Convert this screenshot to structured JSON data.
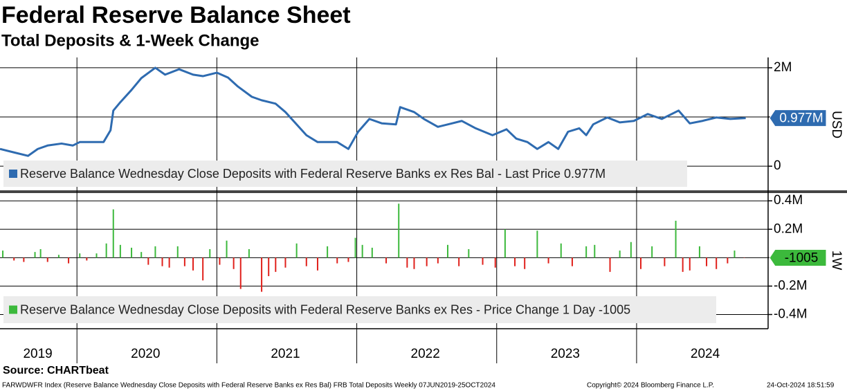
{
  "title": "Federal Reserve Balance Sheet",
  "subtitle": "Total Deposits & 1-Week Change",
  "source": "Source: CHARTbeat",
  "footer_left": "FARWDWFR Index (Reserve Balance Wednesday Close Deposits with Federal Reserve Banks ex Res Bal) FRB Total Deposits  Weekly 07JUN2019-25OCT2024",
  "footer_mid": "Copyright© 2024 Bloomberg Finance L.P.",
  "footer_right": "24-Oct-2024 18:51:59",
  "x_axis": {
    "xlim": [
      2019.45,
      2024.94
    ],
    "xticks": [
      {
        "value": 2019.72,
        "label": "2019"
      },
      {
        "value": 2020.49,
        "label": "2020"
      },
      {
        "value": 2021.49,
        "label": "2021"
      },
      {
        "value": 2022.49,
        "label": "2022"
      },
      {
        "value": 2023.49,
        "label": "2023"
      },
      {
        "value": 2024.49,
        "label": "2024"
      }
    ],
    "gridlines": [
      2020,
      2021,
      2022,
      2023,
      2024
    ]
  },
  "chart_data": [
    {
      "type": "line",
      "x": [
        2019.45,
        2019.55,
        2019.65,
        2019.72,
        2019.79,
        2019.89,
        2019.97,
        2020.02,
        2020.09,
        2020.19,
        2020.24,
        2020.26,
        2020.31,
        2020.39,
        2020.46,
        2020.56,
        2020.63,
        2020.73,
        2020.83,
        2020.9,
        2021.0,
        2021.08,
        2021.15,
        2021.25,
        2021.32,
        2021.42,
        2021.49,
        2021.57,
        2021.64,
        2021.72,
        2021.79,
        2021.86,
        2021.94,
        2022.01,
        2022.09,
        2022.18,
        2022.28,
        2022.31,
        2022.41,
        2022.48,
        2022.58,
        2022.68,
        2022.75,
        2022.85,
        2022.97,
        2023.07,
        2023.14,
        2023.22,
        2023.29,
        2023.37,
        2023.44,
        2023.51,
        2023.59,
        2023.64,
        2023.69,
        2023.79,
        2023.88,
        2023.98,
        2024.08,
        2024.18,
        2024.3,
        2024.38,
        2024.47,
        2024.57,
        2024.67,
        2024.78
      ],
      "series": [
        {
          "name": "Reserve Balance Wednesday Close Deposits with Federal Reserve Banks ex Res Bal - Last Price 0.977M",
          "color": "#2e6bb0",
          "values": [
            350000,
            280000,
            210000,
            350000,
            420000,
            460000,
            420000,
            490000,
            490000,
            490000,
            730000,
            1130000,
            1300000,
            1550000,
            1790000,
            2000000,
            1860000,
            1970000,
            1860000,
            1830000,
            1900000,
            1800000,
            1620000,
            1410000,
            1340000,
            1270000,
            1100000,
            850000,
            630000,
            490000,
            490000,
            490000,
            350000,
            700000,
            960000,
            870000,
            850000,
            1200000,
            1100000,
            960000,
            800000,
            870000,
            920000,
            770000,
            630000,
            750000,
            560000,
            490000,
            350000,
            490000,
            350000,
            700000,
            770000,
            630000,
            850000,
            990000,
            890000,
            920000,
            1060000,
            960000,
            1130000,
            870000,
            920000,
            990000,
            960000,
            977000
          ]
        }
      ],
      "ylim": [
        -490000,
        2210000
      ],
      "yticks": [
        {
          "value": 2000000,
          "label": "2M"
        },
        {
          "value": 1000000,
          "label": null
        },
        0
      ],
      "last_label": "0.977M",
      "right_label": "USD"
    },
    {
      "type": "bar",
      "x": [
        2019.47,
        2019.55,
        2019.62,
        2019.7,
        2019.74,
        2019.79,
        2019.87,
        2019.94,
        2020.02,
        2020.07,
        2020.14,
        2020.21,
        2020.26,
        2020.31,
        2020.39,
        2020.46,
        2020.51,
        2020.56,
        2020.61,
        2020.66,
        2020.72,
        2020.77,
        2020.83,
        2020.9,
        2020.95,
        2021.02,
        2021.07,
        2021.12,
        2021.17,
        2021.23,
        2021.32,
        2021.37,
        2021.42,
        2021.49,
        2021.57,
        2021.64,
        2021.72,
        2021.79,
        2021.86,
        2021.94,
        2021.99,
        2022.04,
        2022.11,
        2022.21,
        2022.3,
        2022.36,
        2022.41,
        2022.5,
        2022.58,
        2022.65,
        2022.73,
        2022.8,
        2022.9,
        2022.99,
        2023.06,
        2023.13,
        2023.2,
        2023.29,
        2023.37,
        2023.46,
        2023.54,
        2023.64,
        2023.7,
        2023.81,
        2023.88,
        2023.96,
        2024.03,
        2024.11,
        2024.2,
        2024.28,
        2024.33,
        2024.38,
        2024.45,
        2024.5,
        2024.57,
        2024.65,
        2024.7,
        2024.77
      ],
      "series": [
        {
          "name": "Reserve Balance Wednesday Close Deposits with Federal Reserve Banks ex Res - Price Change 1 Day -1005",
          "values": [
            50000,
            -20000,
            -30000,
            40000,
            60000,
            -30000,
            20000,
            -40000,
            30000,
            -20000,
            30000,
            100000,
            340000,
            90000,
            70000,
            40000,
            -50000,
            80000,
            -60000,
            -70000,
            80000,
            -60000,
            -90000,
            -160000,
            60000,
            -50000,
            120000,
            -80000,
            -220000,
            60000,
            -240000,
            -130000,
            -100000,
            -70000,
            100000,
            -60000,
            -90000,
            80000,
            -40000,
            -30000,
            140000,
            90000,
            70000,
            -40000,
            380000,
            -70000,
            -80000,
            -60000,
            -40000,
            90000,
            -60000,
            60000,
            -50000,
            -70000,
            200000,
            -60000,
            -80000,
            190000,
            -40000,
            100000,
            -60000,
            80000,
            90000,
            -100000,
            50000,
            110000,
            -80000,
            80000,
            -60000,
            260000,
            -100000,
            -90000,
            80000,
            -60000,
            -80000,
            -40000,
            50000,
            -1005
          ]
        }
      ],
      "positive_color": "#3cb93c",
      "negative_color": "#e0201b",
      "ylim": [
        -500000,
        440000
      ],
      "yticks": [
        {
          "value": 400000,
          "label": "0.4M"
        },
        {
          "value": 200000,
          "label": "0.2M"
        },
        {
          "value": 0,
          "label": null
        },
        {
          "value": -200000,
          "label": "-0.2M"
        },
        {
          "value": -400000,
          "label": "-0.4M"
        }
      ],
      "last_label": "-1005",
      "right_label": "1W"
    }
  ]
}
